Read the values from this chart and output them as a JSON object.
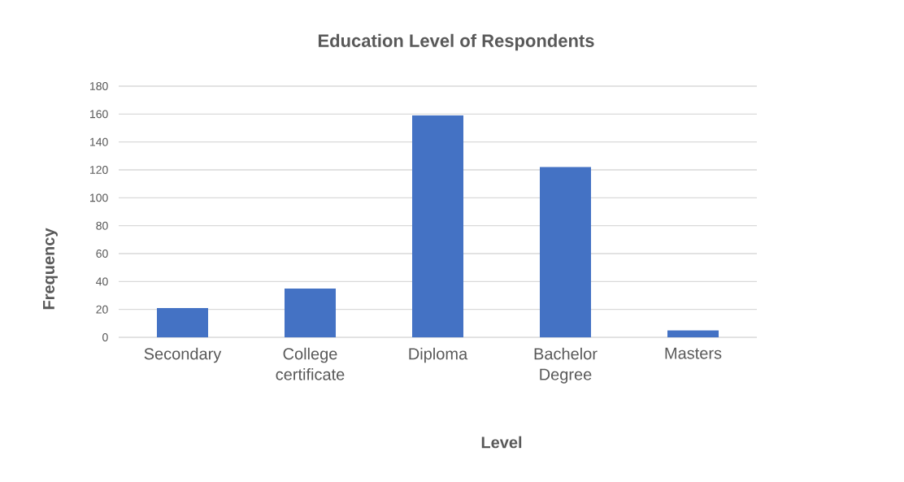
{
  "chart_data": {
    "type": "bar",
    "title": "Education Level of Respondents",
    "xlabel": "Level",
    "ylabel": "Frequency",
    "categories": [
      "Secondary",
      "College certificate",
      "Diploma",
      "Bachelor Degree",
      "Masters"
    ],
    "values": [
      21,
      35,
      159,
      122,
      5
    ],
    "color": "#4472c4",
    "ylim": [
      0,
      180
    ],
    "yticks": [
      0,
      20,
      40,
      60,
      80,
      100,
      120,
      140,
      160,
      180
    ],
    "grid": "y"
  }
}
